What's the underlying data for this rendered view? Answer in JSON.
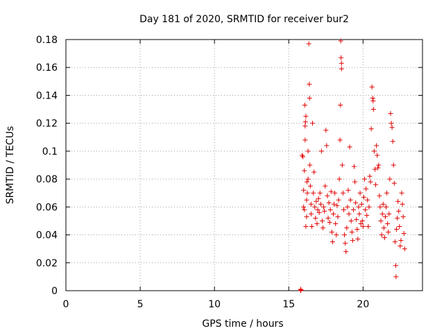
{
  "chart_data": {
    "type": "scatter",
    "title": "Day 181 of 2020, SRMTID for receiver bur2",
    "xlabel": "GPS time / hours",
    "ylabel": "SRMTID / TECUs",
    "xlim": [
      0,
      24
    ],
    "ylim": [
      0,
      0.18
    ],
    "xticks": [
      0,
      5,
      10,
      15,
      20
    ],
    "yticks": [
      0,
      0.02,
      0.04,
      0.06,
      0.08,
      0.1,
      0.12,
      0.14,
      0.16,
      0.18
    ],
    "ytick_labels": [
      "0",
      "0.02",
      "0.04",
      "0.06",
      "0.08",
      "0.1",
      "0.12",
      "0.14",
      "0.16",
      "0.18"
    ],
    "grid": true,
    "marker": "+",
    "color": "#e00000",
    "series": [
      {
        "name": "bur2",
        "points": [
          [
            15.8,
            0.0
          ],
          [
            15.8,
            0.001
          ],
          [
            15.82,
            0.0005
          ],
          [
            15.9,
            0.097
          ],
          [
            15.95,
            0.096
          ],
          [
            16.0,
            0.06
          ],
          [
            16.05,
            0.058
          ],
          [
            16.0,
            0.072
          ],
          [
            16.05,
            0.086
          ],
          [
            16.08,
            0.133
          ],
          [
            16.1,
            0.118
          ],
          [
            16.12,
            0.121
          ],
          [
            16.15,
            0.125
          ],
          [
            16.1,
            0.108
          ],
          [
            16.15,
            0.046
          ],
          [
            16.2,
            0.053
          ],
          [
            16.2,
            0.065
          ],
          [
            16.25,
            0.07
          ],
          [
            16.22,
            0.078
          ],
          [
            16.3,
            0.08
          ],
          [
            16.3,
            0.1
          ],
          [
            16.35,
            0.177
          ],
          [
            16.38,
            0.148
          ],
          [
            16.4,
            0.138
          ],
          [
            16.42,
            0.09
          ],
          [
            16.45,
            0.075
          ],
          [
            16.5,
            0.062
          ],
          [
            16.5,
            0.055
          ],
          [
            16.55,
            0.046
          ],
          [
            16.6,
            0.12
          ],
          [
            16.65,
            0.07
          ],
          [
            16.7,
            0.085
          ],
          [
            16.75,
            0.06
          ],
          [
            16.8,
            0.052
          ],
          [
            16.85,
            0.064
          ],
          [
            16.9,
            0.048
          ],
          [
            16.95,
            0.058
          ],
          [
            17.0,
            0.066
          ],
          [
            17.05,
            0.056
          ],
          [
            17.1,
            0.07
          ],
          [
            17.15,
            0.062
          ],
          [
            17.2,
            0.1
          ],
          [
            17.25,
            0.05
          ],
          [
            17.3,
            0.045
          ],
          [
            17.35,
            0.06
          ],
          [
            17.4,
            0.057
          ],
          [
            17.45,
            0.075
          ],
          [
            17.5,
            0.115
          ],
          [
            17.55,
            0.104
          ],
          [
            17.6,
            0.068
          ],
          [
            17.65,
            0.052
          ],
          [
            17.7,
            0.063
          ],
          [
            17.75,
            0.049
          ],
          [
            17.8,
            0.058
          ],
          [
            17.85,
            0.071
          ],
          [
            17.9,
            0.042
          ],
          [
            17.95,
            0.035
          ],
          [
            18.0,
            0.055
          ],
          [
            18.05,
            0.062
          ],
          [
            18.1,
            0.07
          ],
          [
            18.15,
            0.048
          ],
          [
            18.2,
            0.04
          ],
          [
            18.25,
            0.061
          ],
          [
            18.3,
            0.053
          ],
          [
            18.35,
            0.065
          ],
          [
            18.4,
            0.08
          ],
          [
            18.45,
            0.108
          ],
          [
            18.48,
            0.133
          ],
          [
            18.5,
            0.179
          ],
          [
            18.52,
            0.167
          ],
          [
            18.55,
            0.163
          ],
          [
            18.55,
            0.159
          ],
          [
            18.6,
            0.09
          ],
          [
            18.65,
            0.07
          ],
          [
            18.7,
            0.058
          ],
          [
            18.75,
            0.04
          ],
          [
            18.8,
            0.034
          ],
          [
            18.85,
            0.028
          ],
          [
            18.9,
            0.045
          ],
          [
            18.95,
            0.06
          ],
          [
            19.0,
            0.072
          ],
          [
            19.05,
            0.055
          ],
          [
            19.1,
            0.103
          ],
          [
            19.15,
            0.065
          ],
          [
            19.2,
            0.05
          ],
          [
            19.25,
            0.042
          ],
          [
            19.3,
            0.036
          ],
          [
            19.35,
            0.058
          ],
          [
            19.4,
            0.089
          ],
          [
            19.45,
            0.078
          ],
          [
            19.5,
            0.063
          ],
          [
            19.55,
            0.051
          ],
          [
            19.6,
            0.044
          ],
          [
            19.65,
            0.037
          ],
          [
            19.7,
            0.06
          ],
          [
            19.75,
            0.055
          ],
          [
            19.8,
            0.07
          ],
          [
            19.85,
            0.048
          ],
          [
            19.9,
            0.062
          ],
          [
            19.95,
            0.05
          ],
          [
            20.0,
            0.046
          ],
          [
            20.05,
            0.067
          ],
          [
            20.1,
            0.08
          ],
          [
            20.15,
            0.058
          ],
          [
            20.2,
            0.073
          ],
          [
            20.25,
            0.054
          ],
          [
            20.3,
            0.065
          ],
          [
            20.35,
            0.046
          ],
          [
            20.4,
            0.06
          ],
          [
            20.45,
            0.082
          ],
          [
            20.5,
            0.078
          ],
          [
            20.55,
            0.116
          ],
          [
            20.6,
            0.146
          ],
          [
            20.65,
            0.138
          ],
          [
            20.7,
            0.13
          ],
          [
            20.68,
            0.136
          ],
          [
            20.75,
            0.1
          ],
          [
            20.8,
            0.087
          ],
          [
            20.85,
            0.076
          ],
          [
            20.9,
            0.104
          ],
          [
            20.95,
            0.097
          ],
          [
            21.0,
            0.088
          ],
          [
            21.05,
            0.09
          ],
          [
            21.1,
            0.068
          ],
          [
            21.15,
            0.06
          ],
          [
            21.2,
            0.05
          ],
          [
            21.25,
            0.04
          ],
          [
            21.3,
            0.055
          ],
          [
            21.35,
            0.062
          ],
          [
            21.4,
            0.045
          ],
          [
            21.45,
            0.038
          ],
          [
            21.5,
            0.053
          ],
          [
            21.55,
            0.06
          ],
          [
            21.6,
            0.07
          ],
          [
            21.65,
            0.048
          ],
          [
            21.7,
            0.042
          ],
          [
            21.75,
            0.055
          ],
          [
            21.8,
            0.08
          ],
          [
            21.85,
            0.127
          ],
          [
            21.9,
            0.12
          ],
          [
            21.95,
            0.117
          ],
          [
            22.0,
            0.107
          ],
          [
            22.05,
            0.09
          ],
          [
            22.1,
            0.077
          ],
          [
            22.15,
            0.035
          ],
          [
            22.2,
            0.018
          ],
          [
            22.22,
            0.01
          ],
          [
            22.25,
            0.044
          ],
          [
            22.3,
            0.052
          ],
          [
            22.35,
            0.064
          ],
          [
            22.4,
            0.057
          ],
          [
            22.45,
            0.046
          ],
          [
            22.5,
            0.032
          ],
          [
            22.55,
            0.036
          ],
          [
            22.6,
            0.07
          ],
          [
            22.65,
            0.062
          ],
          [
            22.7,
            0.053
          ],
          [
            22.75,
            0.041
          ],
          [
            22.8,
            0.03
          ]
        ]
      }
    ]
  }
}
